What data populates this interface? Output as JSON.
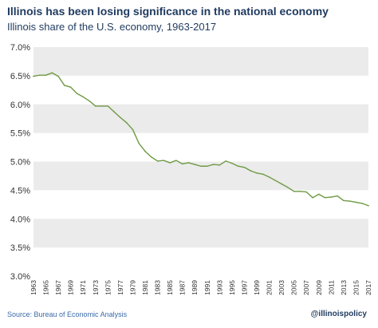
{
  "header": {
    "title": "Illinois has been losing significance in the national economy",
    "subtitle": "Illinois share of the U.S. economy, 1963-2017"
  },
  "footer": {
    "source": "Source: Bureau of Economic Analysis",
    "handle": "@illinoispolicy"
  },
  "colors": {
    "line": "#6f9a45",
    "band": "#ebebeb",
    "title": "#1f3a5f",
    "source": "#3a6aa8"
  },
  "chart_data": {
    "type": "line",
    "title": "Illinois has been losing significance in the national economy",
    "subtitle": "Illinois share of the U.S. economy, 1963-2017",
    "xlabel": "",
    "ylabel": "",
    "xlim": [
      1963,
      2017
    ],
    "ylim": [
      3.0,
      7.0
    ],
    "y_ticks": [
      "3.0%",
      "3.5%",
      "4.0%",
      "4.5%",
      "5.0%",
      "5.5%",
      "6.0%",
      "6.5%",
      "7.0%"
    ],
    "y_tick_values": [
      3.0,
      3.5,
      4.0,
      4.5,
      5.0,
      5.5,
      6.0,
      6.5,
      7.0
    ],
    "x_ticks": [
      "1963",
      "1965",
      "1967",
      "1969",
      "1971",
      "1973",
      "1975",
      "1977",
      "1979",
      "1981",
      "1983",
      "1985",
      "1987",
      "1989",
      "1991",
      "1993",
      "1995",
      "1997",
      "1999",
      "2001",
      "2003",
      "2005",
      "2007",
      "2009",
      "2011",
      "2013",
      "2015",
      "2017"
    ],
    "x_tick_values": [
      1963,
      1965,
      1967,
      1969,
      1971,
      1973,
      1975,
      1977,
      1979,
      1981,
      1983,
      1985,
      1987,
      1989,
      1991,
      1993,
      1995,
      1997,
      1999,
      2001,
      2003,
      2005,
      2007,
      2009,
      2011,
      2013,
      2015,
      2017
    ],
    "grid": "alternating horizontal bands",
    "legend": "none",
    "series": [
      {
        "x": [
          1963,
          1964,
          1965,
          1966,
          1967,
          1968,
          1969,
          1970,
          1971,
          1972,
          1973,
          1974,
          1975,
          1976,
          1977,
          1978,
          1979,
          1980,
          1981,
          1982,
          1983,
          1984,
          1985,
          1986,
          1987,
          1988,
          1989,
          1990,
          1991,
          1992,
          1993,
          1994,
          1995,
          1996,
          1997,
          1998,
          1999,
          2000,
          2001,
          2002,
          2003,
          2004,
          2005,
          2006,
          2007,
          2008,
          2009,
          2010,
          2011,
          2012,
          2013,
          2014,
          2015,
          2016,
          2017
        ],
        "values": [
          6.49,
          6.51,
          6.51,
          6.55,
          6.49,
          6.33,
          6.3,
          6.19,
          6.13,
          6.06,
          5.97,
          5.97,
          5.97,
          5.87,
          5.77,
          5.68,
          5.56,
          5.32,
          5.18,
          5.08,
          5.01,
          5.02,
          4.98,
          5.02,
          4.96,
          4.98,
          4.95,
          4.92,
          4.92,
          4.95,
          4.94,
          5.01,
          4.97,
          4.92,
          4.9,
          4.84,
          4.8,
          4.78,
          4.73,
          4.67,
          4.61,
          4.55,
          4.48,
          4.48,
          4.47,
          4.37,
          4.43,
          4.37,
          4.38,
          4.4,
          4.32,
          4.31,
          4.29,
          4.27,
          4.23
        ]
      }
    ]
  }
}
